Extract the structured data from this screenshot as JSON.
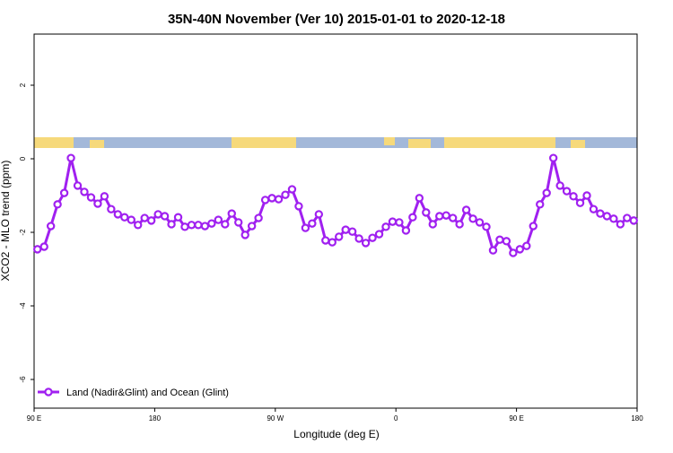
{
  "chart_data": {
    "type": "line",
    "title": "35N-40N November (Ver 10)   2015-01-01 to 2020-12-18",
    "x_label": "Longitude (deg E)",
    "y_label": "XCO2 - MLO trend (ppm)",
    "xlim": [
      90,
      540
    ],
    "xticks": [
      {
        "value": 90,
        "label": "90 E"
      },
      {
        "value": 180,
        "label": "180"
      },
      {
        "value": 270,
        "label": "90 W"
      },
      {
        "value": 360,
        "label": "0"
      },
      {
        "value": 450,
        "label": "90 E"
      },
      {
        "value": 540,
        "label": "180"
      }
    ],
    "ylim": [
      -6.78,
      3.39
    ],
    "yticks": [
      -6,
      -4,
      -2,
      0,
      2
    ],
    "legend": "bottom-left",
    "x": [
      92.5,
      97.5,
      102.5,
      107.5,
      112.5,
      117.5,
      122.5,
      127.5,
      132.5,
      137.5,
      142.5,
      147.5,
      152.5,
      157.5,
      162.5,
      167.5,
      172.5,
      177.5,
      182.5,
      187.5,
      192.5,
      197.5,
      202.5,
      207.5,
      212.5,
      217.5,
      222.5,
      227.5,
      232.5,
      237.5,
      242.5,
      247.5,
      252.5,
      257.5,
      262.5,
      267.5,
      272.5,
      277.5,
      282.5,
      287.5,
      292.5,
      297.5,
      302.5,
      307.5,
      312.5,
      317.5,
      322.5,
      327.5,
      332.5,
      337.5,
      342.5,
      347.5,
      352.5,
      357.5,
      362.5,
      367.5,
      372.5,
      377.5,
      382.5,
      387.5,
      392.5,
      397.5,
      402.5,
      407.5,
      412.5,
      417.5,
      422.5,
      427.5,
      432.5,
      437.5,
      442.5,
      447.5,
      452.5,
      457.5,
      462.5,
      467.5,
      472.5,
      477.5,
      482.5,
      487.5,
      492.5,
      497.5,
      502.5,
      507.5,
      512.5,
      517.5,
      522.5,
      527.5,
      532.5,
      537.5
    ],
    "series": [
      {
        "name": "Land (Nadir&Glint) and Ocean (Glint)",
        "color": "#a020f0",
        "values": [
          -2.46,
          -2.39,
          -1.83,
          -1.24,
          -0.93,
          0.02,
          -0.73,
          -0.9,
          -1.05,
          -1.22,
          -1.02,
          -1.37,
          -1.51,
          -1.59,
          -1.66,
          -1.8,
          -1.61,
          -1.68,
          -1.51,
          -1.56,
          -1.78,
          -1.59,
          -1.85,
          -1.8,
          -1.8,
          -1.83,
          -1.76,
          -1.66,
          -1.78,
          -1.49,
          -1.73,
          -2.07,
          -1.83,
          -1.61,
          -1.12,
          -1.07,
          -1.1,
          -0.98,
          -0.83,
          -1.29,
          -1.88,
          -1.76,
          -1.51,
          -2.22,
          -2.27,
          -2.12,
          -1.93,
          -1.98,
          -2.17,
          -2.29,
          -2.15,
          -2.05,
          -1.85,
          -1.71,
          -1.73,
          -1.95,
          -1.59,
          -1.07,
          -1.46,
          -1.78,
          -1.56,
          -1.54,
          -1.61,
          -1.78,
          -1.39,
          -1.63,
          -1.73,
          -1.85,
          -2.49,
          -2.2,
          -2.24,
          -2.56,
          -2.46,
          -2.37,
          -1.83,
          -1.24,
          -0.93,
          0.02,
          -0.73,
          -0.88,
          -1.02,
          -1.2,
          -1,
          -1.37,
          -1.49,
          -1.56,
          -1.63,
          -1.78,
          -1.61,
          -1.68
        ]
      }
    ]
  }
}
